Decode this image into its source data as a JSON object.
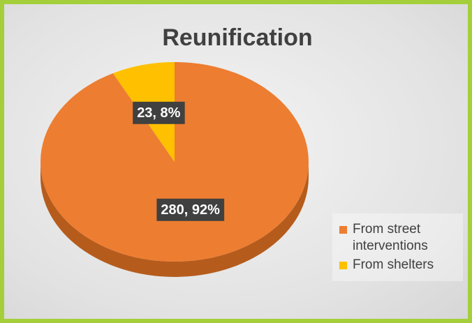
{
  "chart_data": {
    "type": "pie",
    "title": "Reunification",
    "categories": [
      "From street interventions",
      "From shelters"
    ],
    "values": [
      280,
      23
    ],
    "value_labels": [
      "280, 92%",
      "23, 8%"
    ],
    "colors": [
      "#ed7d31",
      "#ffc000"
    ]
  }
}
